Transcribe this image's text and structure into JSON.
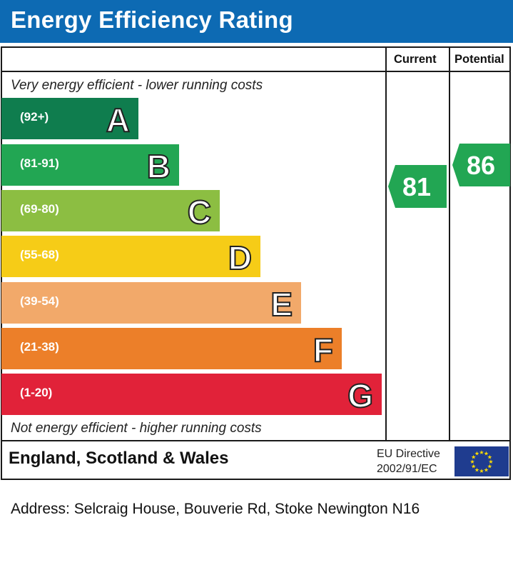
{
  "header": {
    "title": "Energy Efficiency Rating"
  },
  "columns": {
    "current": "Current",
    "potential": "Potential"
  },
  "captions": {
    "top": "Very energy efficient - lower running costs",
    "bottom": "Not energy efficient - higher running costs"
  },
  "chart_data": {
    "type": "bar",
    "title": "Energy Efficiency Rating",
    "bands": [
      {
        "letter": "A",
        "range": "(92+)",
        "color": "#0f7d4e"
      },
      {
        "letter": "B",
        "range": "(81-91)",
        "color": "#22a653"
      },
      {
        "letter": "C",
        "range": "(69-80)",
        "color": "#8cbe42"
      },
      {
        "letter": "D",
        "range": "(55-68)",
        "color": "#f6cc17"
      },
      {
        "letter": "E",
        "range": "(39-54)",
        "color": "#f2a96a"
      },
      {
        "letter": "F",
        "range": "(21-38)",
        "color": "#ec7f29"
      },
      {
        "letter": "G",
        "range": "(1-20)",
        "color": "#e12239"
      }
    ],
    "current": {
      "value": 81,
      "band": "B",
      "color": "#22a653"
    },
    "potential": {
      "value": 86,
      "band": "B",
      "color": "#22a653"
    }
  },
  "footer": {
    "region": "England, Scotland & Wales",
    "directive_line1": "EU Directive",
    "directive_line2": "2002/91/EC",
    "flag_icon": "eu-flag-icon"
  },
  "address": "Address: Selcraig House, Bouverie Rd, Stoke Newington N16"
}
